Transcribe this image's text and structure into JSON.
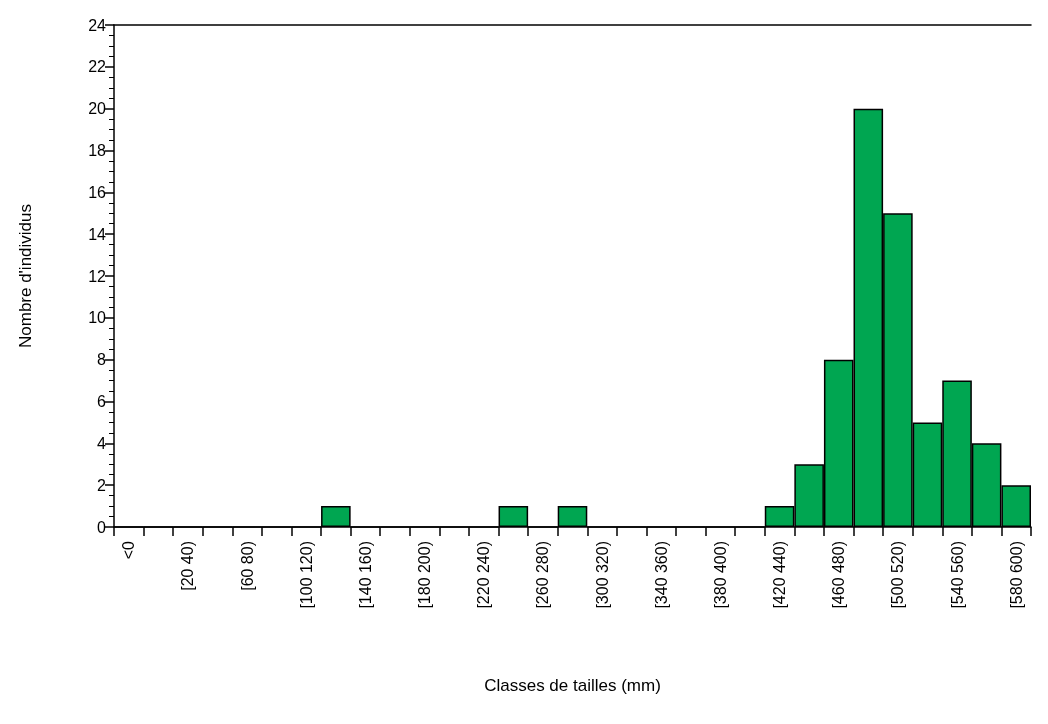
{
  "chart_data": {
    "type": "bar",
    "xlabel": "Classes de tailles (mm)",
    "ylabel": "Nombre d'individus",
    "categories": [
      "<0",
      null,
      "[20 40)",
      null,
      "[60 80)",
      null,
      "[100 120)",
      null,
      "[140 160)",
      null,
      "[180 200)",
      null,
      "[220 240)",
      null,
      "[260 280)",
      null,
      "[300 320)",
      null,
      "[340 360)",
      null,
      "[380 400)",
      null,
      "[420 440)",
      null,
      "[460 480)",
      null,
      "[500 520)",
      null,
      "[540 560)",
      null,
      "[580 600)"
    ],
    "values": [
      0,
      0,
      0,
      0,
      0,
      0,
      0,
      1,
      0,
      0,
      0,
      0,
      0,
      1,
      0,
      1,
      0,
      0,
      0,
      0,
      0,
      0,
      1,
      3,
      8,
      20,
      15,
      5,
      7,
      4,
      2
    ],
    "color": "#00a651",
    "ylim": [
      0,
      24
    ],
    "yticks": [
      0,
      2,
      4,
      6,
      8,
      10,
      12,
      14,
      16,
      18,
      20,
      22,
      24
    ]
  }
}
